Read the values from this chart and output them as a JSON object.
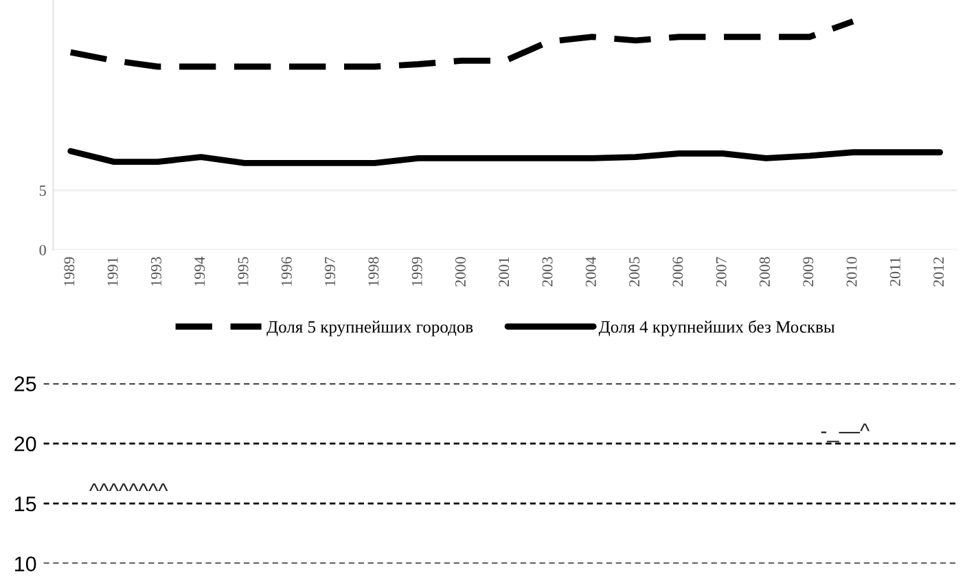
{
  "chart_data": [
    {
      "type": "line",
      "categories": [
        "1989",
        "1991",
        "1993",
        "1994",
        "1995",
        "1996",
        "1997",
        "1998",
        "1999",
        "2000",
        "2001",
        "2003",
        "2004",
        "2005",
        "2006",
        "2007",
        "2008",
        "2009",
        "2010",
        "2011",
        "2012"
      ],
      "series": [
        {
          "name": "Доля 5 крупнейших городов",
          "color": "#000000",
          "line_style": "dashed",
          "values": [
            16.6,
            15.9,
            15.4,
            15.4,
            15.4,
            15.4,
            15.4,
            15.4,
            15.6,
            15.9,
            15.9,
            17.5,
            17.9,
            17.6,
            17.9,
            17.9,
            17.9,
            17.9,
            19.2,
            null,
            null
          ]
        },
        {
          "name": "Доля 4 крупнейших без Москвы",
          "color": "#000000",
          "line_style": "solid",
          "values": [
            8.3,
            7.4,
            7.4,
            7.8,
            7.3,
            7.3,
            7.3,
            7.3,
            7.7,
            7.7,
            7.7,
            7.7,
            7.7,
            7.8,
            8.1,
            8.1,
            7.7,
            7.9,
            8.2,
            8.2,
            8.2
          ]
        }
      ],
      "ylim": [
        0,
        21
      ],
      "yticks": [
        0,
        5
      ],
      "grid": "y",
      "legend": "bottom",
      "marker": "none"
    },
    {
      "type": "line",
      "categories": [
        null
      ],
      "ylim": [
        10,
        25
      ],
      "yticks": [
        10,
        15,
        20,
        25
      ],
      "grid": "y",
      "annotations": [
        "^^^^^^^^",
        "-_—^"
      ]
    }
  ]
}
